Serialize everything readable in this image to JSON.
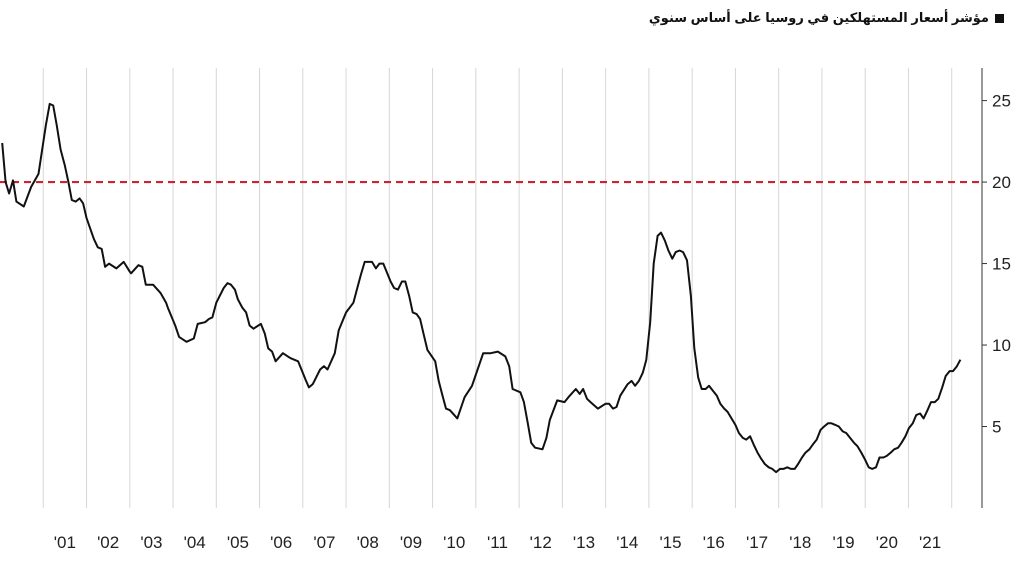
{
  "chart_data": {
    "type": "line",
    "title": "",
    "legend": {
      "label": "مؤشر أسعار المستهلكين في روسيا على أساس سنوي",
      "placement": "top-right"
    },
    "xlabel": "",
    "ylabel": "",
    "x_tick_labels": [
      "'01",
      "'02",
      "'03",
      "'04",
      "'05",
      "'06",
      "'07",
      "'08",
      "'09",
      "'10",
      "'11",
      "'12",
      "'13",
      "'14",
      "'15",
      "'16",
      "'17",
      "'18",
      "'19",
      "'20",
      "'21"
    ],
    "y_ticks": [
      5,
      10,
      15,
      20,
      25
    ],
    "ylim": [
      0,
      27
    ],
    "grid": "vertical",
    "reference_line": {
      "value": 20,
      "color": "#cc2233",
      "style": "dashed"
    },
    "series": [
      {
        "color": "#111111",
        "points": [
          [
            2000.05,
            22.4
          ],
          [
            2000.13,
            20.0
          ],
          [
            2000.21,
            19.3
          ],
          [
            2000.3,
            20.1
          ],
          [
            2000.38,
            18.8
          ],
          [
            2000.55,
            18.5
          ],
          [
            2000.72,
            19.7
          ],
          [
            2000.89,
            20.5
          ],
          [
            2001.06,
            23.5
          ],
          [
            2001.15,
            24.8
          ],
          [
            2001.23,
            24.7
          ],
          [
            2001.31,
            23.5
          ],
          [
            2001.4,
            22.0
          ],
          [
            2001.5,
            21.0
          ],
          [
            2001.58,
            20.0
          ],
          [
            2001.66,
            18.9
          ],
          [
            2001.75,
            18.8
          ],
          [
            2001.84,
            19.0
          ],
          [
            2001.92,
            18.7
          ],
          [
            2002.0,
            17.8
          ],
          [
            2002.17,
            16.5
          ],
          [
            2002.26,
            16.0
          ],
          [
            2002.35,
            15.9
          ],
          [
            2002.43,
            14.8
          ],
          [
            2002.52,
            15.0
          ],
          [
            2002.69,
            14.7
          ],
          [
            2002.86,
            15.1
          ],
          [
            2003.0,
            14.5
          ],
          [
            2003.03,
            14.4
          ],
          [
            2003.2,
            14.9
          ],
          [
            2003.29,
            14.8
          ],
          [
            2003.37,
            13.7
          ],
          [
            2003.54,
            13.7
          ],
          [
            2003.71,
            13.2
          ],
          [
            2003.84,
            12.6
          ],
          [
            2003.88,
            12.3
          ],
          [
            2004.05,
            11.2
          ],
          [
            2004.14,
            10.5
          ],
          [
            2004.31,
            10.2
          ],
          [
            2004.48,
            10.4
          ],
          [
            2004.57,
            11.3
          ],
          [
            2004.74,
            11.4
          ],
          [
            2004.83,
            11.6
          ],
          [
            2004.91,
            11.7
          ],
          [
            2005.0,
            12.6
          ],
          [
            2005.17,
            13.5
          ],
          [
            2005.26,
            13.8
          ],
          [
            2005.34,
            13.7
          ],
          [
            2005.43,
            13.4
          ],
          [
            2005.5,
            12.8
          ],
          [
            2005.6,
            12.3
          ],
          [
            2005.69,
            12.0
          ],
          [
            2005.77,
            11.2
          ],
          [
            2005.86,
            11.0
          ],
          [
            2006.03,
            11.3
          ],
          [
            2006.12,
            10.7
          ],
          [
            2006.2,
            9.8
          ],
          [
            2006.29,
            9.6
          ],
          [
            2006.37,
            9.0
          ],
          [
            2006.54,
            9.5
          ],
          [
            2006.71,
            9.2
          ],
          [
            2006.8,
            9.1
          ],
          [
            2006.89,
            9.0
          ],
          [
            2007.06,
            7.9
          ],
          [
            2007.14,
            7.4
          ],
          [
            2007.23,
            7.6
          ],
          [
            2007.4,
            8.5
          ],
          [
            2007.49,
            8.7
          ],
          [
            2007.57,
            8.5
          ],
          [
            2007.74,
            9.5
          ],
          [
            2007.83,
            10.9
          ],
          [
            2008.0,
            12.0
          ],
          [
            2008.17,
            12.6
          ],
          [
            2008.26,
            13.5
          ],
          [
            2008.34,
            14.3
          ],
          [
            2008.43,
            15.1
          ],
          [
            2008.6,
            15.1
          ],
          [
            2008.69,
            14.7
          ],
          [
            2008.77,
            15.0
          ],
          [
            2008.86,
            15.0
          ],
          [
            2009.03,
            13.9
          ],
          [
            2009.11,
            13.5
          ],
          [
            2009.2,
            13.4
          ],
          [
            2009.29,
            13.9
          ],
          [
            2009.37,
            13.9
          ],
          [
            2009.46,
            13.0
          ],
          [
            2009.54,
            12.0
          ],
          [
            2009.63,
            11.9
          ],
          [
            2009.71,
            11.6
          ],
          [
            2009.8,
            10.6
          ],
          [
            2009.88,
            9.7
          ],
          [
            2010.06,
            9.0
          ],
          [
            2010.14,
            7.8
          ],
          [
            2010.23,
            6.9
          ],
          [
            2010.31,
            6.1
          ],
          [
            2010.4,
            6.0
          ],
          [
            2010.57,
            5.5
          ],
          [
            2010.74,
            6.8
          ],
          [
            2010.91,
            7.5
          ],
          [
            2011.08,
            8.8
          ],
          [
            2011.17,
            9.5
          ],
          [
            2011.34,
            9.5
          ],
          [
            2011.51,
            9.6
          ],
          [
            2011.68,
            9.3
          ],
          [
            2011.77,
            8.7
          ],
          [
            2011.85,
            7.3
          ],
          [
            2012.03,
            7.1
          ],
          [
            2012.11,
            6.5
          ],
          [
            2012.2,
            5.2
          ],
          [
            2012.28,
            4.0
          ],
          [
            2012.37,
            3.7
          ],
          [
            2012.54,
            3.6
          ],
          [
            2012.63,
            4.3
          ],
          [
            2012.71,
            5.4
          ],
          [
            2012.88,
            6.6
          ],
          [
            2013.05,
            6.5
          ],
          [
            2013.14,
            6.8
          ],
          [
            2013.31,
            7.3
          ],
          [
            2013.4,
            7.0
          ],
          [
            2013.48,
            7.3
          ],
          [
            2013.57,
            6.7
          ],
          [
            2013.65,
            6.5
          ],
          [
            2013.82,
            6.1
          ],
          [
            2014.0,
            6.4
          ],
          [
            2014.08,
            6.4
          ],
          [
            2014.17,
            6.1
          ],
          [
            2014.25,
            6.2
          ],
          [
            2014.34,
            6.9
          ],
          [
            2014.51,
            7.6
          ],
          [
            2014.6,
            7.8
          ],
          [
            2014.68,
            7.5
          ],
          [
            2014.77,
            7.8
          ],
          [
            2014.86,
            8.3
          ],
          [
            2014.94,
            9.1
          ],
          [
            2015.03,
            11.4
          ],
          [
            2015.11,
            15.0
          ],
          [
            2015.2,
            16.7
          ],
          [
            2015.28,
            16.9
          ],
          [
            2015.37,
            16.4
          ],
          [
            2015.45,
            15.8
          ],
          [
            2015.54,
            15.3
          ],
          [
            2015.62,
            15.7
          ],
          [
            2015.71,
            15.8
          ],
          [
            2015.79,
            15.7
          ],
          [
            2015.88,
            15.2
          ],
          [
            2015.97,
            13.0
          ],
          [
            2016.05,
            9.8
          ],
          [
            2016.14,
            8.0
          ],
          [
            2016.22,
            7.3
          ],
          [
            2016.31,
            7.3
          ],
          [
            2016.39,
            7.5
          ],
          [
            2016.48,
            7.2
          ],
          [
            2016.57,
            6.9
          ],
          [
            2016.65,
            6.4
          ],
          [
            2016.74,
            6.1
          ],
          [
            2016.82,
            5.9
          ],
          [
            2016.91,
            5.5
          ],
          [
            2017.0,
            5.1
          ],
          [
            2017.08,
            4.6
          ],
          [
            2017.17,
            4.3
          ],
          [
            2017.25,
            4.2
          ],
          [
            2017.34,
            4.4
          ],
          [
            2017.42,
            3.9
          ],
          [
            2017.51,
            3.4
          ],
          [
            2017.6,
            3.0
          ],
          [
            2017.68,
            2.7
          ],
          [
            2017.77,
            2.5
          ],
          [
            2017.85,
            2.4
          ],
          [
            2017.94,
            2.2
          ],
          [
            2018.03,
            2.4
          ],
          [
            2018.11,
            2.4
          ],
          [
            2018.2,
            2.5
          ],
          [
            2018.28,
            2.4
          ],
          [
            2018.37,
            2.4
          ],
          [
            2018.45,
            2.7
          ],
          [
            2018.54,
            3.1
          ],
          [
            2018.62,
            3.4
          ],
          [
            2018.71,
            3.6
          ],
          [
            2018.79,
            3.9
          ],
          [
            2018.88,
            4.2
          ],
          [
            2018.97,
            4.8
          ],
          [
            2019.05,
            5.0
          ],
          [
            2019.14,
            5.2
          ],
          [
            2019.22,
            5.2
          ],
          [
            2019.31,
            5.1
          ],
          [
            2019.39,
            5.0
          ],
          [
            2019.48,
            4.7
          ],
          [
            2019.56,
            4.6
          ],
          [
            2019.65,
            4.3
          ],
          [
            2019.74,
            4.0
          ],
          [
            2019.82,
            3.8
          ],
          [
            2019.91,
            3.4
          ],
          [
            2019.99,
            3.0
          ],
          [
            2020.08,
            2.5
          ],
          [
            2020.16,
            2.4
          ],
          [
            2020.25,
            2.5
          ],
          [
            2020.33,
            3.1
          ],
          [
            2020.42,
            3.1
          ],
          [
            2020.5,
            3.2
          ],
          [
            2020.59,
            3.4
          ],
          [
            2020.67,
            3.6
          ],
          [
            2020.76,
            3.7
          ],
          [
            2020.84,
            4.0
          ],
          [
            2020.93,
            4.4
          ],
          [
            2021.01,
            4.9
          ],
          [
            2021.1,
            5.2
          ],
          [
            2021.18,
            5.7
          ],
          [
            2021.27,
            5.8
          ],
          [
            2021.35,
            5.5
          ],
          [
            2021.44,
            6.0
          ],
          [
            2021.52,
            6.5
          ],
          [
            2021.61,
            6.5
          ],
          [
            2021.69,
            6.7
          ],
          [
            2021.78,
            7.4
          ],
          [
            2021.86,
            8.1
          ],
          [
            2021.95,
            8.4
          ],
          [
            2022.03,
            8.4
          ],
          [
            2022.12,
            8.7
          ],
          [
            2022.2,
            9.1
          ]
        ]
      }
    ]
  }
}
